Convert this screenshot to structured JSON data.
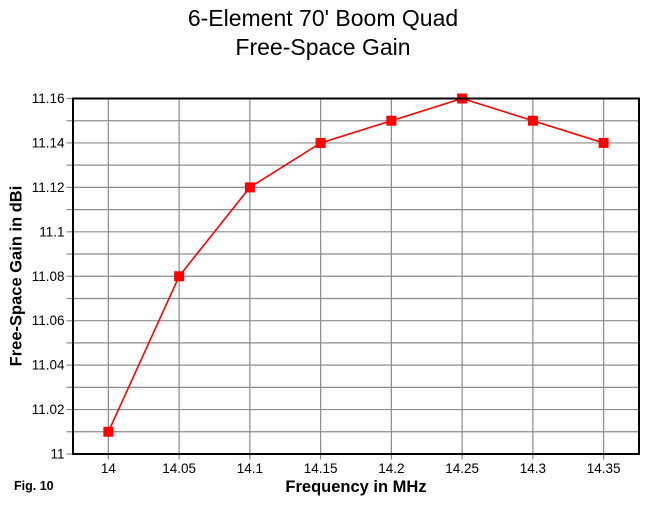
{
  "figure": {
    "caption": "Fig. 10"
  },
  "chart_data": {
    "type": "line",
    "title": "6-Element 70' Boom Quad",
    "subtitle": "Free-Space Gain",
    "xlabel": "Frequency in MHz",
    "ylabel": "Free-Space Gain in dBi",
    "x": [
      14,
      14.05,
      14.1,
      14.15,
      14.2,
      14.25,
      14.3,
      14.35
    ],
    "series": [
      {
        "name": "Free-Space Gain",
        "values": [
          11.01,
          11.08,
          11.12,
          11.14,
          11.15,
          11.16,
          11.15,
          11.14
        ]
      }
    ],
    "xlim": [
      13.975,
      14.375
    ],
    "ylim": [
      11.0,
      11.16
    ],
    "grid": true,
    "legend": "none",
    "marker": "square",
    "x_ticks": [
      {
        "value": 14,
        "label": "14"
      },
      {
        "value": 14.05,
        "label": "14.05"
      },
      {
        "value": 14.1,
        "label": "14.1"
      },
      {
        "value": 14.15,
        "label": "14.15"
      },
      {
        "value": 14.2,
        "label": "14.2"
      },
      {
        "value": 14.25,
        "label": "14.25"
      },
      {
        "value": 14.3,
        "label": "14.3"
      },
      {
        "value": 14.35,
        "label": "14.35"
      }
    ],
    "y_ticks": [
      {
        "value": 11,
        "label": "11"
      },
      {
        "value": 11.01,
        "label": ""
      },
      {
        "value": 11.02,
        "label": "11.02"
      },
      {
        "value": 11.03,
        "label": ""
      },
      {
        "value": 11.04,
        "label": "11.04"
      },
      {
        "value": 11.05,
        "label": ""
      },
      {
        "value": 11.06,
        "label": "11.06"
      },
      {
        "value": 11.07,
        "label": ""
      },
      {
        "value": 11.08,
        "label": "11.08"
      },
      {
        "value": 11.09,
        "label": ""
      },
      {
        "value": 11.1,
        "label": "11.1"
      },
      {
        "value": 11.11,
        "label": ""
      },
      {
        "value": 11.12,
        "label": "11.12"
      },
      {
        "value": 11.13,
        "label": ""
      },
      {
        "value": 11.14,
        "label": "11.14"
      },
      {
        "value": 11.15,
        "label": ""
      },
      {
        "value": 11.16,
        "label": "11.16"
      }
    ],
    "colors": {
      "line": "#ff0000",
      "marker": "#ff0000",
      "grid": "#8c8c8c",
      "axis": "#000000",
      "text": "#000000",
      "background": "#ffffff"
    }
  }
}
